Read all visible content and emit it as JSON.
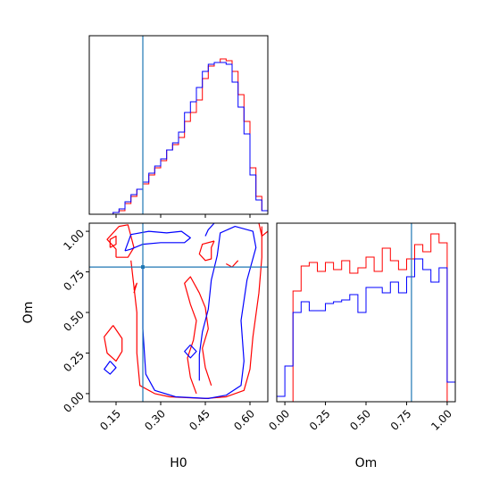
{
  "colors": {
    "series_a": "#ff0000",
    "series_b": "#0000ff",
    "truth": "#1f77b4",
    "frame": "#000000",
    "background": "#ffffff"
  },
  "chart_data": [
    {
      "type": "histogram",
      "panel": "H0 marginal",
      "xlim": [
        0.06,
        0.66
      ],
      "ylim": [
        0,
        1
      ],
      "show_y_ticks": false,
      "x_ticks": [
        0.15,
        0.3,
        0.45,
        0.6
      ],
      "truth_x": 0.24,
      "bins": [
        0.07,
        0.09,
        0.11,
        0.13,
        0.15,
        0.17,
        0.19,
        0.21,
        0.23,
        0.25,
        0.27,
        0.29,
        0.31,
        0.33,
        0.35,
        0.37,
        0.39,
        0.41,
        0.43,
        0.45,
        0.47,
        0.49,
        0.51,
        0.53,
        0.55,
        0.57,
        0.59,
        0.61,
        0.63,
        0.65
      ],
      "series": [
        {
          "color_key": "series_a",
          "values": [
            0,
            0,
            0,
            0,
            0.01,
            0.02,
            0.06,
            0.1,
            0.14,
            0.17,
            0.22,
            0.26,
            0.3,
            0.36,
            0.39,
            0.43,
            0.52,
            0.57,
            0.64,
            0.76,
            0.83,
            0.85,
            0.87,
            0.86,
            0.8,
            0.67,
            0.52,
            0.26,
            0.1,
            0.02
          ]
        },
        {
          "color_key": "series_b",
          "values": [
            0,
            0,
            0,
            0,
            0.01,
            0.03,
            0.07,
            0.11,
            0.14,
            0.18,
            0.23,
            0.27,
            0.31,
            0.36,
            0.4,
            0.46,
            0.57,
            0.63,
            0.71,
            0.8,
            0.84,
            0.85,
            0.85,
            0.84,
            0.74,
            0.6,
            0.45,
            0.22,
            0.08,
            0.02
          ]
        }
      ]
    },
    {
      "type": "contour",
      "panel": "joint H0 vs Om",
      "xlabel": "H0",
      "ylabel": "Om",
      "xlim": [
        0.06,
        0.66
      ],
      "ylim": [
        -0.05,
        1.05
      ],
      "x_ticks": [
        0.15,
        0.3,
        0.45,
        0.6
      ],
      "y_ticks": [
        0.0,
        0.25,
        0.5,
        0.75,
        1.0
      ],
      "truth": {
        "x": 0.24,
        "y": 0.78
      },
      "series": [
        {
          "color_key": "series_a",
          "contours": [
            [
              [
                0.15,
                0.84
              ],
              [
                0.15,
                0.89
              ],
              [
                0.12,
                0.95
              ],
              [
                0.16,
                1.03
              ],
              [
                0.19,
                1.04
              ],
              [
                0.2,
                0.97
              ],
              [
                0.21,
                0.9
              ],
              [
                0.19,
                0.84
              ],
              [
                0.15,
                0.84
              ]
            ],
            [
              [
                0.13,
                0.9
              ],
              [
                0.13,
                0.95
              ],
              [
                0.15,
                0.97
              ],
              [
                0.15,
                0.92
              ],
              [
                0.13,
                0.9
              ]
            ],
            [
              [
                0.48,
                0.94
              ],
              [
                0.44,
                0.92
              ],
              [
                0.43,
                0.86
              ],
              [
                0.45,
                0.82
              ],
              [
                0.47,
                0.83
              ],
              [
                0.47,
                0.9
              ],
              [
                0.48,
                0.94
              ]
            ],
            [
              [
                0.63,
                1.05
              ],
              [
                0.64,
                0.97
              ],
              [
                0.66,
                1.0
              ]
            ],
            [
              [
                0.2,
                0.82
              ],
              [
                0.22,
                0.5
              ],
              [
                0.22,
                0.25
              ],
              [
                0.23,
                0.05
              ],
              [
                0.28,
                0.0
              ],
              [
                0.33,
                -0.02
              ],
              [
                0.45,
                -0.03
              ],
              [
                0.52,
                -0.02
              ],
              [
                0.58,
                0.02
              ],
              [
                0.6,
                0.15
              ],
              [
                0.61,
                0.35
              ],
              [
                0.63,
                0.62
              ],
              [
                0.64,
                0.84
              ],
              [
                0.64,
                1.03
              ]
            ],
            [
              [
                0.42,
                0.0
              ],
              [
                0.4,
                0.1
              ],
              [
                0.39,
                0.22
              ],
              [
                0.41,
                0.33
              ],
              [
                0.42,
                0.45
              ],
              [
                0.4,
                0.55
              ],
              [
                0.38,
                0.68
              ],
              [
                0.4,
                0.72
              ],
              [
                0.43,
                0.62
              ],
              [
                0.45,
                0.53
              ],
              [
                0.46,
                0.4
              ],
              [
                0.44,
                0.28
              ],
              [
                0.45,
                0.16
              ],
              [
                0.47,
                0.05
              ]
            ],
            [
              [
                0.14,
                0.42
              ],
              [
                0.11,
                0.35
              ],
              [
                0.12,
                0.25
              ],
              [
                0.15,
                0.2
              ],
              [
                0.17,
                0.26
              ],
              [
                0.17,
                0.34
              ],
              [
                0.14,
                0.42
              ]
            ],
            [
              [
                0.21,
                0.64
              ],
              [
                0.22,
                0.68
              ],
              [
                0.21,
                0.62
              ]
            ],
            [
              [
                0.52,
                0.8
              ],
              [
                0.54,
                0.78
              ],
              [
                0.56,
                0.82
              ]
            ]
          ]
        },
        {
          "color_key": "series_b",
          "contours": [
            [
              [
                0.18,
                0.88
              ],
              [
                0.2,
                0.98
              ],
              [
                0.26,
                1.0
              ],
              [
                0.32,
                0.99
              ],
              [
                0.37,
                1.0
              ],
              [
                0.4,
                0.96
              ],
              [
                0.38,
                0.93
              ],
              [
                0.3,
                0.93
              ],
              [
                0.24,
                0.92
              ],
              [
                0.2,
                0.89
              ],
              [
                0.18,
                0.88
              ]
            ],
            [
              [
                0.24,
                0.78
              ],
              [
                0.24,
                0.4
              ],
              [
                0.25,
                0.12
              ],
              [
                0.28,
                0.02
              ],
              [
                0.35,
                -0.02
              ],
              [
                0.46,
                -0.03
              ],
              [
                0.52,
                -0.01
              ],
              [
                0.57,
                0.05
              ],
              [
                0.58,
                0.2
              ],
              [
                0.57,
                0.45
              ],
              [
                0.59,
                0.7
              ],
              [
                0.62,
                0.9
              ],
              [
                0.61,
                1.0
              ],
              [
                0.55,
                1.03
              ],
              [
                0.5,
                0.99
              ],
              [
                0.49,
                0.85
              ],
              [
                0.47,
                0.7
              ],
              [
                0.46,
                0.52
              ],
              [
                0.44,
                0.38
              ],
              [
                0.43,
                0.24
              ],
              [
                0.43,
                0.08
              ]
            ],
            [
              [
                0.13,
                0.2
              ],
              [
                0.11,
                0.15
              ],
              [
                0.13,
                0.12
              ],
              [
                0.15,
                0.16
              ],
              [
                0.13,
                0.2
              ]
            ],
            [
              [
                0.4,
                0.3
              ],
              [
                0.38,
                0.26
              ],
              [
                0.4,
                0.22
              ],
              [
                0.42,
                0.26
              ],
              [
                0.4,
                0.3
              ]
            ],
            [
              [
                0.45,
                0.97
              ],
              [
                0.46,
                1.01
              ],
              [
                0.48,
                1.05
              ]
            ]
          ]
        }
      ]
    },
    {
      "type": "histogram",
      "panel": "Om marginal",
      "xlabel": "Om",
      "xlim": [
        -0.05,
        1.05
      ],
      "ylim": [
        0,
        1
      ],
      "show_y_ticks": false,
      "x_ticks": [
        0.0,
        0.25,
        0.5,
        0.75,
        1.0
      ],
      "truth_x": 0.78,
      "bins": [
        -0.025,
        0.025,
        0.075,
        0.125,
        0.175,
        0.225,
        0.275,
        0.325,
        0.375,
        0.425,
        0.475,
        0.525,
        0.575,
        0.625,
        0.675,
        0.725,
        0.775,
        0.825,
        0.875,
        0.925,
        0.975,
        1.025
      ],
      "series": [
        {
          "color_key": "series_a",
          "values": [
            0,
            0,
            0.62,
            0.76,
            0.78,
            0.73,
            0.78,
            0.74,
            0.79,
            0.72,
            0.75,
            0.81,
            0.73,
            0.86,
            0.79,
            0.74,
            0.8,
            0.88,
            0.84,
            0.94,
            0.89,
            0
          ]
        },
        {
          "color_key": "series_b",
          "values": [
            0.03,
            0.2,
            0.5,
            0.56,
            0.51,
            0.51,
            0.55,
            0.56,
            0.57,
            0.6,
            0.5,
            0.64,
            0.64,
            0.61,
            0.67,
            0.61,
            0.7,
            0.8,
            0.74,
            0.67,
            0.75,
            0.11
          ]
        }
      ]
    }
  ]
}
